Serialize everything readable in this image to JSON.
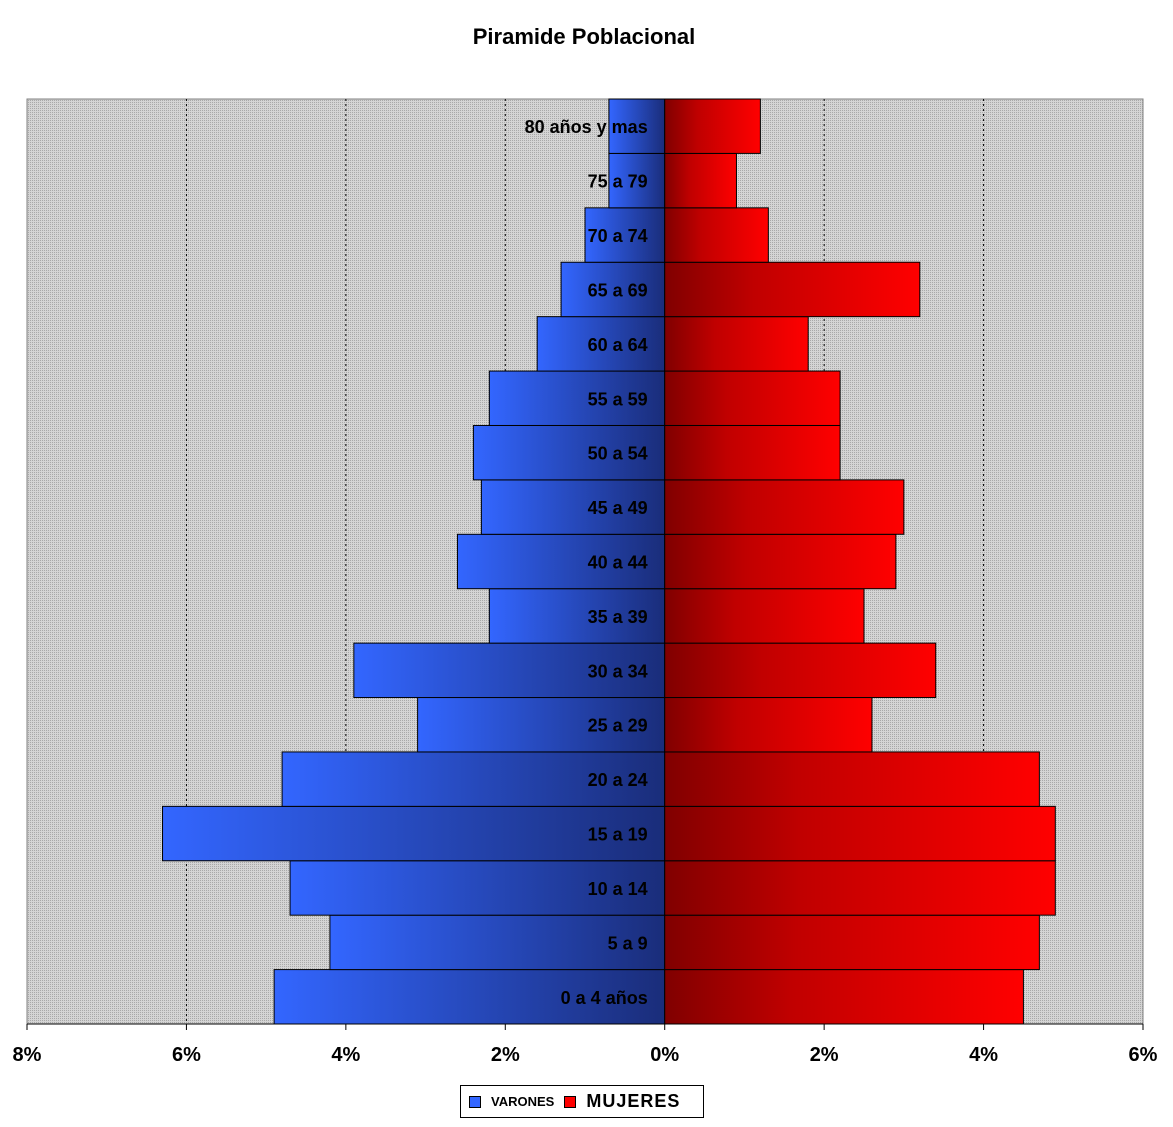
{
  "chart_data": {
    "type": "bar",
    "orientation": "horizontal",
    "title": "Piramide Poblacional",
    "categories": [
      "0 a 4 años",
      "5 a 9",
      "10 a 14",
      "15 a 19",
      "20 a 24",
      "25 a 29",
      "30 a 34",
      "35 a 39",
      "40 a 44",
      "45 a 49",
      "50 a 54",
      "55 a 59",
      "60 a 64",
      "65 a 69",
      "70 a 74",
      "75 a 79",
      "80 años y mas"
    ],
    "series": [
      {
        "name": "VARONES",
        "color": "#3366ff",
        "side": "left",
        "values": [
          4.9,
          4.2,
          4.7,
          6.3,
          4.8,
          3.1,
          3.9,
          2.2,
          2.6,
          2.3,
          2.4,
          2.2,
          1.6,
          1.3,
          1.0,
          0.7,
          0.7
        ]
      },
      {
        "name": "MUJERES",
        "color": "#ff0000",
        "side": "right",
        "values": [
          4.5,
          4.7,
          4.9,
          4.9,
          4.7,
          2.6,
          3.4,
          2.5,
          2.9,
          3.0,
          2.2,
          2.2,
          1.8,
          3.2,
          1.3,
          0.9,
          1.2
        ]
      }
    ],
    "xlim": [
      -8,
      6
    ],
    "xticks": [
      -8,
      -6,
      -4,
      -2,
      0,
      2,
      4,
      6
    ],
    "xtick_labels": [
      "8%",
      "6%",
      "4%",
      "2%",
      "0%",
      "2%",
      "4%",
      "6%"
    ],
    "grid": "vertical dotted",
    "legend_position": "bottom"
  },
  "legend": {
    "varones_label": "VARONES",
    "mujeres_label": "MUJERES",
    "varones_color": "#3366ff",
    "mujeres_color": "#ff0000"
  }
}
